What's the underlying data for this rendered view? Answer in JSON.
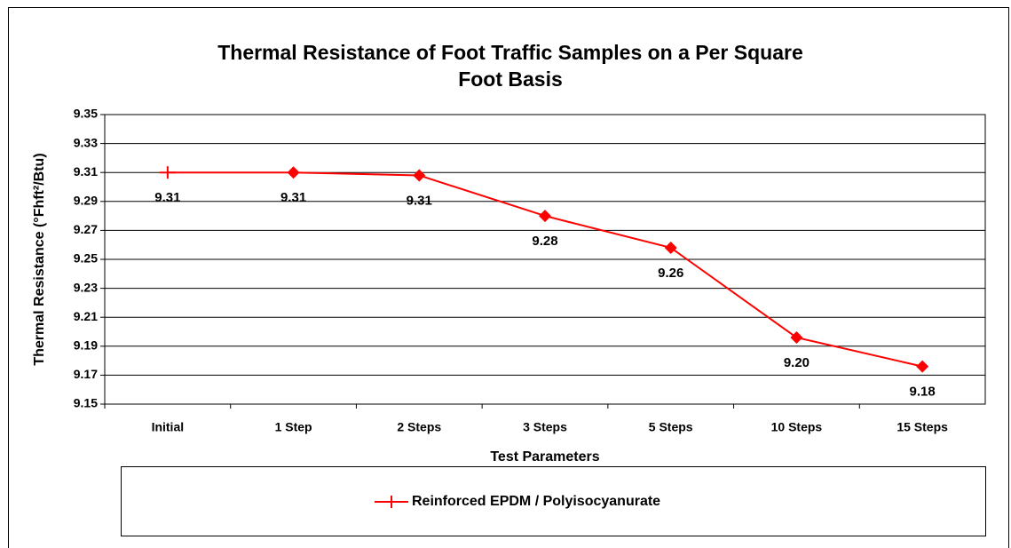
{
  "chart_data": {
    "type": "line",
    "title": [
      "Thermal Resistance of Foot Traffic Samples on a Per Square",
      "Foot Basis"
    ],
    "x_label": "Test Parameters",
    "y_label": "Thermal Resistance (°Fhft²/Btu)",
    "categories": [
      "Initial",
      "1 Step",
      "2 Steps",
      "3 Steps",
      "5 Steps",
      "10 Steps",
      "15 Steps"
    ],
    "series": [
      {
        "name": "Reinforced EPDM / Polyisocyanurate",
        "color": "#ff0000",
        "values": [
          9.31,
          9.31,
          9.308,
          9.28,
          9.258,
          9.196,
          9.176
        ],
        "value_labels": [
          "9.31",
          "9.31",
          "9.31",
          "9.28",
          "9.26",
          "9.20",
          "9.18"
        ]
      }
    ],
    "ylim": [
      9.15,
      9.35
    ],
    "yticks": [
      9.15,
      9.17,
      9.19,
      9.21,
      9.23,
      9.25,
      9.27,
      9.29,
      9.31,
      9.33,
      9.35
    ],
    "grid": true,
    "legend": "bottom"
  }
}
